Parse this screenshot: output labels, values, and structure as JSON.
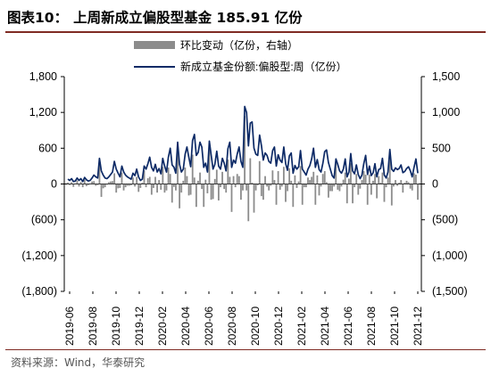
{
  "header": {
    "figure_no": "图表10：",
    "title": "上周新成立偏股型基金 185.91 亿份"
  },
  "source": "资料来源：Wind，华泰研究",
  "colors": {
    "bars": "#8c8c8c",
    "line": "#0d2a66",
    "rule": "#7f2b23"
  },
  "chart_data": {
    "type": "bar+line",
    "legend": [
      {
        "label": "环比变动（亿份，右轴）",
        "kind": "bar"
      },
      {
        "label": "新成立基金份额:偏股型:周（亿份）",
        "kind": "line"
      }
    ],
    "left_axis": {
      "min": -1800,
      "max": 1800,
      "ticks": [
        "1,800",
        "1,200",
        "600",
        "0",
        "(600)",
        "(1,200)",
        "(1,800)"
      ]
    },
    "right_axis": {
      "min": -1500,
      "max": 1500,
      "ticks": [
        "1,500",
        "1,000",
        "500",
        "0",
        "(500)",
        "(1,000)",
        "(1,500)"
      ]
    },
    "x_ticks": [
      "2019-06",
      "2019-08",
      "2019-10",
      "2019-12",
      "2020-02",
      "2020-04",
      "2020-06",
      "2020-08",
      "2020-10",
      "2020-12",
      "2021-02",
      "2021-04",
      "2021-06",
      "2021-08",
      "2021-10",
      "2021-12"
    ],
    "x_start": "2019-06",
    "x_end": "2021-12",
    "series": [
      {
        "name": "新成立基金份额:偏股型:周（亿份）",
        "axis": "left",
        "values": [
          80,
          60,
          90,
          40,
          50,
          100,
          60,
          90,
          40,
          110,
          70,
          50,
          60,
          100,
          150,
          120,
          100,
          430,
          220,
          150,
          100,
          90,
          120,
          160,
          200,
          380,
          250,
          180,
          120,
          300,
          200,
          150,
          120,
          100,
          80,
          180,
          140,
          250,
          120,
          60,
          80,
          300,
          250,
          340,
          450,
          280,
          220,
          330,
          200,
          260,
          170,
          430,
          300,
          200,
          450,
          600,
          320,
          280,
          180,
          700,
          330,
          200,
          250,
          500,
          620,
          450,
          290,
          730,
          830,
          480,
          530,
          700,
          620,
          280,
          350,
          200,
          720,
          480,
          250,
          330,
          550,
          300,
          250,
          430,
          350,
          220,
          590,
          700,
          280,
          400,
          350,
          500,
          620,
          380,
          280,
          1300,
          1200,
          640,
          1020,
          1040,
          600,
          500,
          480,
          820,
          640,
          400,
          520,
          480,
          380,
          350,
          560,
          620,
          300,
          490,
          400,
          360,
          620,
          340,
          230,
          470,
          520,
          180,
          310,
          250,
          290,
          560,
          250,
          200,
          150,
          250,
          310,
          420,
          600,
          280,
          410,
          240,
          200,
          350,
          540,
          570,
          360,
          250,
          140,
          100,
          420,
          330,
          220,
          180,
          250,
          420,
          120,
          200,
          510,
          220,
          170,
          320,
          160,
          90,
          150,
          340,
          480,
          160,
          300,
          140,
          190,
          340,
          120,
          240,
          260,
          430,
          150,
          100,
          200,
          580,
          250,
          210,
          270,
          240,
          260,
          320,
          190,
          210,
          260,
          290,
          220,
          120,
          280,
          420,
          180
        ]
      },
      {
        "name": "环比变动（亿份，右轴）",
        "axis": "right",
        "values": [
          20,
          -15,
          25,
          -40,
          8,
          50,
          -35,
          30,
          -45,
          60,
          -30,
          -15,
          8,
          35,
          40,
          -25,
          -15,
          280,
          -180,
          -60,
          -45,
          -10,
          25,
          35,
          40,
          150,
          -120,
          -60,
          -55,
          160,
          -90,
          -45,
          -25,
          -25,
          -18,
          90,
          -35,
          100,
          -110,
          -55,
          18,
          190,
          -45,
          80,
          100,
          -150,
          -55,
          100,
          -120,
          55,
          -80,
          240,
          -120,
          -90,
          230,
          140,
          -260,
          -40,
          -90,
          480,
          -340,
          -120,
          45,
          230,
          110,
          -160,
          -150,
          410,
          90,
          -320,
          45,
          160,
          -70,
          -320,
          60,
          -130,
          480,
          -220,
          -210,
          70,
          200,
          -230,
          -45,
          170,
          -70,
          -120,
          340,
          100,
          -390,
          110,
          -45,
          140,
          110,
          -220,
          -90,
          950,
          -90,
          -520,
          360,
          18,
          -400,
          -90,
          -18,
          320,
          -170,
          -220,
          110,
          -35,
          -90,
          -25,
          190,
          55,
          -290,
          180,
          -80,
          -35,
          240,
          -250,
          -100,
          220,
          45,
          -320,
          120,
          -55,
          35,
          250,
          -290,
          -45,
          -45,
          90,
          55,
          100,
          170,
          -290,
          120,
          -160,
          -35,
          140,
          180,
          25,
          -190,
          -100,
          -100,
          -35,
          300,
          -80,
          -100,
          -35,
          60,
          160,
          -270,
          75,
          290,
          -270,
          -45,
          140,
          -150,
          -65,
          55,
          180,
          130,
          -290,
          130,
          -150,
          45,
          140,
          -200,
          110,
          18,
          160,
          -250,
          -45,
          90,
          360,
          -300,
          -35,
          55,
          -25,
          18,
          55,
          -120,
          18,
          45,
          25,
          -65,
          -90,
          150,
          130,
          -220
        ]
      }
    ]
  }
}
